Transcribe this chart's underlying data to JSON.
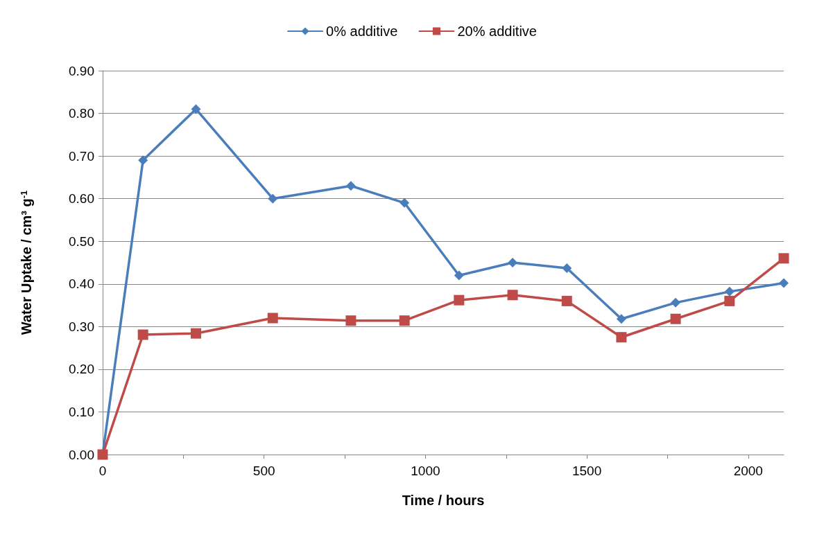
{
  "chart_data": {
    "type": "line",
    "xlabel": "Time / hours",
    "ylabel": "Water Uptake / cm³ g$^{-1}$",
    "x": [
      0,
      125,
      289,
      527,
      769,
      935,
      1104,
      1270,
      1438,
      1607,
      1775,
      1942,
      2110
    ],
    "series": [
      {
        "name": "0% additive",
        "color": "#4a7ebb",
        "marker": "diamond",
        "values": [
          0,
          0.69,
          0.81,
          0.6,
          0.63,
          0.59,
          0.42,
          0.45,
          0.437,
          0.318,
          0.356,
          0.382,
          0.402
        ]
      },
      {
        "name": "20% additive",
        "color": "#be4b48",
        "marker": "square",
        "values": [
          0,
          0.281,
          0.284,
          0.32,
          0.314,
          0.314,
          0.362,
          0.374,
          0.36,
          0.275,
          0.318,
          0.36,
          0.46
        ]
      }
    ],
    "xlim": [
      0,
      2110
    ],
    "xticks": [
      0,
      {
        "value": 250,
        "label": null
      },
      500,
      {
        "value": 750,
        "label": null
      },
      1000,
      {
        "value": 1250,
        "label": null
      },
      1500,
      {
        "value": 1750,
        "label": null
      },
      2000
    ],
    "ylim": [
      0,
      0.9
    ],
    "yticks": [
      {
        "value": 0,
        "label": "0.00"
      },
      {
        "value": 0.1,
        "label": "0.10"
      },
      {
        "value": 0.2,
        "label": "0.20"
      },
      {
        "value": 0.3,
        "label": "0.30"
      },
      {
        "value": 0.4,
        "label": "0.40"
      },
      {
        "value": 0.5,
        "label": "0.50"
      },
      {
        "value": 0.6,
        "label": "0.60"
      },
      {
        "value": 0.7,
        "label": "0.70"
      },
      {
        "value": 0.8,
        "label": "0.80"
      },
      {
        "value": 0.9,
        "label": "0.90"
      }
    ],
    "grid": "y",
    "legend": "top",
    "line_style": "solid"
  }
}
